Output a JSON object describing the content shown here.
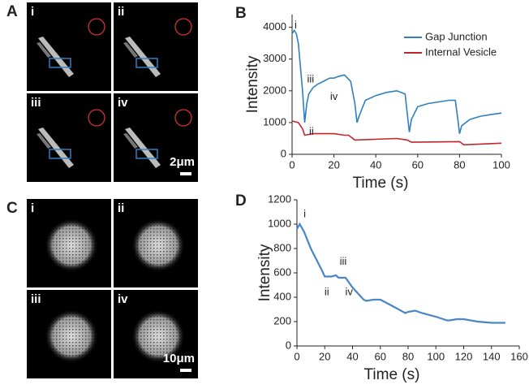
{
  "figure": {
    "panels": [
      {
        "letter": "A",
        "images": [
          "i",
          "ii",
          "iii",
          "iv"
        ],
        "scale_bar": "2μm"
      },
      {
        "letter": "C",
        "images": [
          "i",
          "ii",
          "iii",
          "iv"
        ],
        "scale_bar": "10μm"
      }
    ]
  },
  "chart_data": [
    {
      "type": "line",
      "panel": "B",
      "xlabel": "Time (s)",
      "ylabel": "Intensity",
      "xlim": [
        0,
        100
      ],
      "xticks": [
        0,
        20,
        40,
        60,
        80,
        100
      ],
      "ylim": [
        0,
        4400
      ],
      "yticks": [
        0,
        1000,
        2000,
        3000,
        4000
      ],
      "legend": "upper right",
      "annotations": [
        "i",
        "ii",
        "iii",
        "iv"
      ],
      "series": [
        {
          "name": "Gap Junction",
          "color": "#2f7fc1",
          "x": [
            0,
            1,
            2,
            3,
            5,
            6,
            7,
            8,
            10,
            12,
            15,
            18,
            20,
            22,
            25,
            28,
            30,
            31,
            32,
            35,
            40,
            45,
            50,
            54,
            55,
            56,
            57,
            60,
            65,
            70,
            75,
            78,
            79,
            80,
            81,
            85,
            90,
            95,
            100
          ],
          "values": [
            3800,
            3900,
            3800,
            3500,
            2000,
            1000,
            1600,
            1900,
            2100,
            2200,
            2300,
            2400,
            2400,
            2450,
            2500,
            2300,
            1600,
            1000,
            1200,
            1700,
            1850,
            1950,
            2000,
            1900,
            1300,
            700,
            1100,
            1500,
            1600,
            1650,
            1700,
            1700,
            1200,
            650,
            900,
            1100,
            1200,
            1250,
            1300
          ]
        },
        {
          "name": "Internal Vesicle",
          "color": "#c0272d",
          "x": [
            0,
            3,
            5,
            6,
            10,
            20,
            25,
            27,
            30,
            50,
            55,
            57,
            80,
            82,
            100
          ],
          "values": [
            1050,
            1000,
            800,
            600,
            650,
            650,
            600,
            600,
            450,
            500,
            450,
            380,
            400,
            300,
            350
          ]
        }
      ]
    },
    {
      "type": "line",
      "panel": "D",
      "xlabel": "Time (s)",
      "ylabel": "Intensity",
      "xlim": [
        0,
        160
      ],
      "xticks": [
        0,
        20,
        40,
        60,
        80,
        100,
        120,
        140,
        160
      ],
      "ylim": [
        0,
        1200
      ],
      "yticks": [
        0,
        200,
        400,
        600,
        800,
        1000,
        1200
      ],
      "annotations": [
        "i",
        "ii",
        "iii",
        "iv"
      ],
      "series": [
        {
          "color": "#4a86c5",
          "x": [
            0,
            2,
            5,
            10,
            18,
            20,
            25,
            28,
            30,
            33,
            35,
            40,
            48,
            50,
            55,
            60,
            70,
            78,
            80,
            85,
            90,
            100,
            108,
            110,
            115,
            120,
            130,
            140,
            150
          ],
          "values": [
            960,
            1000,
            940,
            800,
            620,
            570,
            570,
            580,
            560,
            560,
            560,
            480,
            380,
            370,
            380,
            380,
            320,
            270,
            280,
            290,
            270,
            240,
            210,
            210,
            220,
            220,
            200,
            190,
            190
          ]
        }
      ]
    }
  ]
}
